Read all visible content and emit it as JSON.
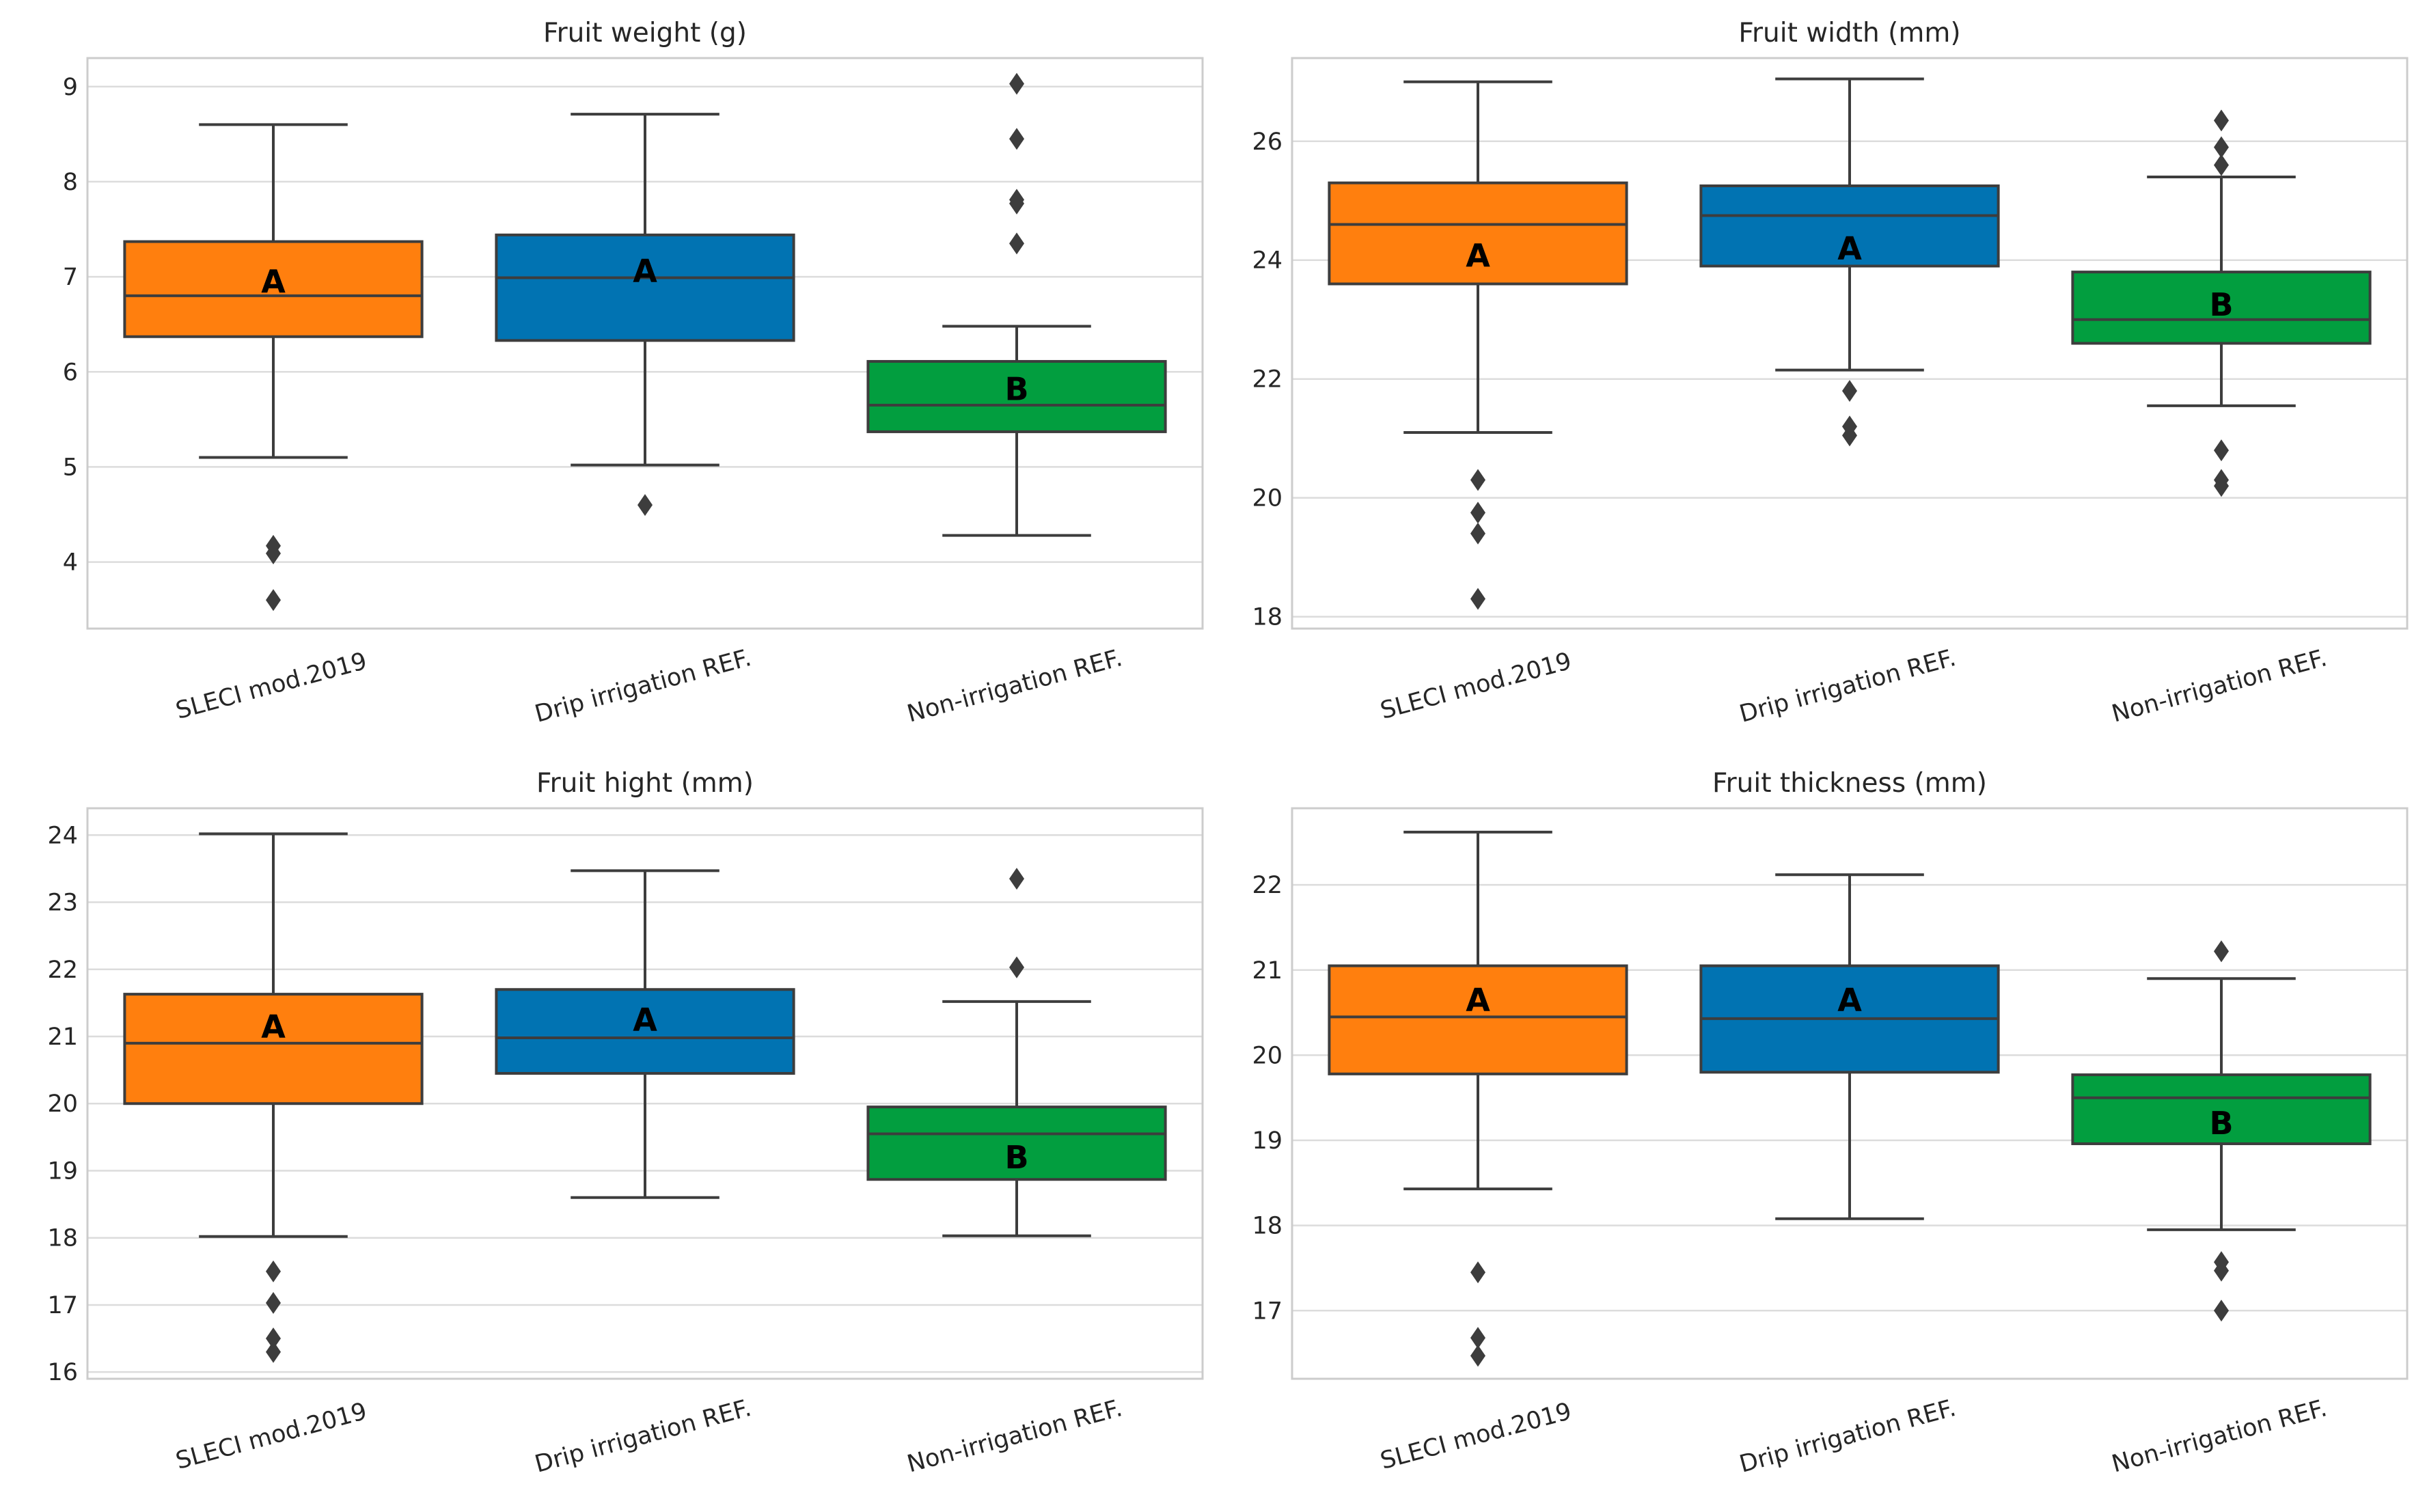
{
  "chart_data": [
    {
      "type": "box",
      "title": "Fruit weight (g)",
      "xlabel": "",
      "ylabel": "",
      "ylim": [
        3.3,
        9.3
      ],
      "yticks": [
        4,
        5,
        6,
        7,
        8,
        9
      ],
      "categories": [
        "SLECI mod.2019",
        "Drip irrigation REF.",
        "Non-irrigation REF."
      ],
      "boxes": [
        {
          "name": "SLECI mod.2019",
          "color": "#ff7f0e",
          "whisker_low": 5.1,
          "q1": 6.37,
          "median": 6.8,
          "q3": 7.37,
          "whisker_high": 8.6,
          "outliers": [
            4.17,
            4.09,
            3.6
          ],
          "letter": "A",
          "letter_y": 6.95
        },
        {
          "name": "Drip irrigation REF.",
          "color": "#0173b2",
          "whisker_low": 5.02,
          "q1": 6.33,
          "median": 6.99,
          "q3": 7.44,
          "whisker_high": 8.71,
          "outliers": [
            4.6
          ],
          "letter": "A",
          "letter_y": 7.06
        },
        {
          "name": "Non-irrigation REF.",
          "color": "#029e3f",
          "whisker_low": 4.28,
          "q1": 5.37,
          "median": 5.65,
          "q3": 6.11,
          "whisker_high": 6.48,
          "outliers": [
            9.03,
            8.45,
            7.81,
            7.77,
            7.35
          ],
          "letter": "B",
          "letter_y": 5.82
        }
      ]
    },
    {
      "type": "box",
      "title": "Fruit width (mm)",
      "xlabel": "",
      "ylabel": "",
      "ylim": [
        17.8,
        27.4
      ],
      "yticks": [
        18,
        20,
        22,
        24,
        26
      ],
      "categories": [
        "SLECI mod.2019",
        "Drip irrigation REF.",
        "Non-irrigation REF."
      ],
      "boxes": [
        {
          "name": "SLECI mod.2019",
          "color": "#ff7f0e",
          "whisker_low": 21.1,
          "q1": 23.6,
          "median": 24.6,
          "q3": 25.3,
          "whisker_high": 27.0,
          "outliers": [
            20.3,
            19.75,
            19.4,
            18.3
          ],
          "letter": "A",
          "letter_y": 24.08
        },
        {
          "name": "Drip irrigation REF.",
          "color": "#0173b2",
          "whisker_low": 22.15,
          "q1": 23.9,
          "median": 24.75,
          "q3": 25.25,
          "whisker_high": 27.05,
          "outliers": [
            21.8,
            21.2,
            21.05
          ],
          "letter": "A",
          "letter_y": 24.2
        },
        {
          "name": "Non-irrigation REF.",
          "color": "#029e3f",
          "whisker_low": 21.55,
          "q1": 22.6,
          "median": 23.0,
          "q3": 23.8,
          "whisker_high": 25.4,
          "outliers": [
            26.35,
            25.9,
            25.6,
            20.8,
            20.3,
            20.2
          ],
          "letter": "B",
          "letter_y": 23.25
        }
      ]
    },
    {
      "type": "box",
      "title": "Fruit hight (mm)",
      "xlabel": "",
      "ylabel": "",
      "ylim": [
        15.9,
        24.4
      ],
      "yticks": [
        16,
        17,
        18,
        19,
        20,
        21,
        22,
        23,
        24
      ],
      "categories": [
        "SLECI mod.2019",
        "Drip irrigation REF.",
        "Non-irrigation REF."
      ],
      "boxes": [
        {
          "name": "SLECI mod.2019",
          "color": "#ff7f0e",
          "whisker_low": 18.02,
          "q1": 20.0,
          "median": 20.9,
          "q3": 21.63,
          "whisker_high": 24.02,
          "outliers": [
            17.5,
            17.03,
            16.5,
            16.3
          ],
          "letter": "A",
          "letter_y": 21.15
        },
        {
          "name": "Drip irrigation REF.",
          "color": "#0173b2",
          "whisker_low": 18.6,
          "q1": 20.45,
          "median": 20.98,
          "q3": 21.7,
          "whisker_high": 23.47,
          "outliers": [],
          "letter": "A",
          "letter_y": 21.25
        },
        {
          "name": "Non-irrigation REF.",
          "color": "#029e3f",
          "whisker_low": 18.03,
          "q1": 18.87,
          "median": 19.55,
          "q3": 19.95,
          "whisker_high": 21.52,
          "outliers": [
            23.35,
            22.03
          ],
          "letter": "B",
          "letter_y": 19.2
        }
      ]
    },
    {
      "type": "box",
      "title": "Fruit thickness (mm)",
      "xlabel": "",
      "ylabel": "",
      "ylim": [
        16.2,
        22.9
      ],
      "yticks": [
        17,
        18,
        19,
        20,
        21,
        22
      ],
      "categories": [
        "SLECI mod.2019",
        "Drip irrigation REF.",
        "Non-irrigation REF."
      ],
      "boxes": [
        {
          "name": "SLECI mod.2019",
          "color": "#ff7f0e",
          "whisker_low": 18.43,
          "q1": 19.78,
          "median": 20.45,
          "q3": 21.05,
          "whisker_high": 22.62,
          "outliers": [
            17.45,
            16.68,
            16.47
          ],
          "letter": "A",
          "letter_y": 20.65
        },
        {
          "name": "Drip irrigation REF.",
          "color": "#0173b2",
          "whisker_low": 18.08,
          "q1": 19.8,
          "median": 20.43,
          "q3": 21.05,
          "whisker_high": 22.12,
          "outliers": [],
          "letter": "A",
          "letter_y": 20.65
        },
        {
          "name": "Non-irrigation REF.",
          "color": "#029e3f",
          "whisker_low": 17.95,
          "q1": 18.96,
          "median": 19.5,
          "q3": 19.77,
          "whisker_high": 20.9,
          "outliers": [
            21.22,
            17.57,
            17.47,
            17.0
          ],
          "letter": "B",
          "letter_y": 19.2
        }
      ]
    }
  ]
}
